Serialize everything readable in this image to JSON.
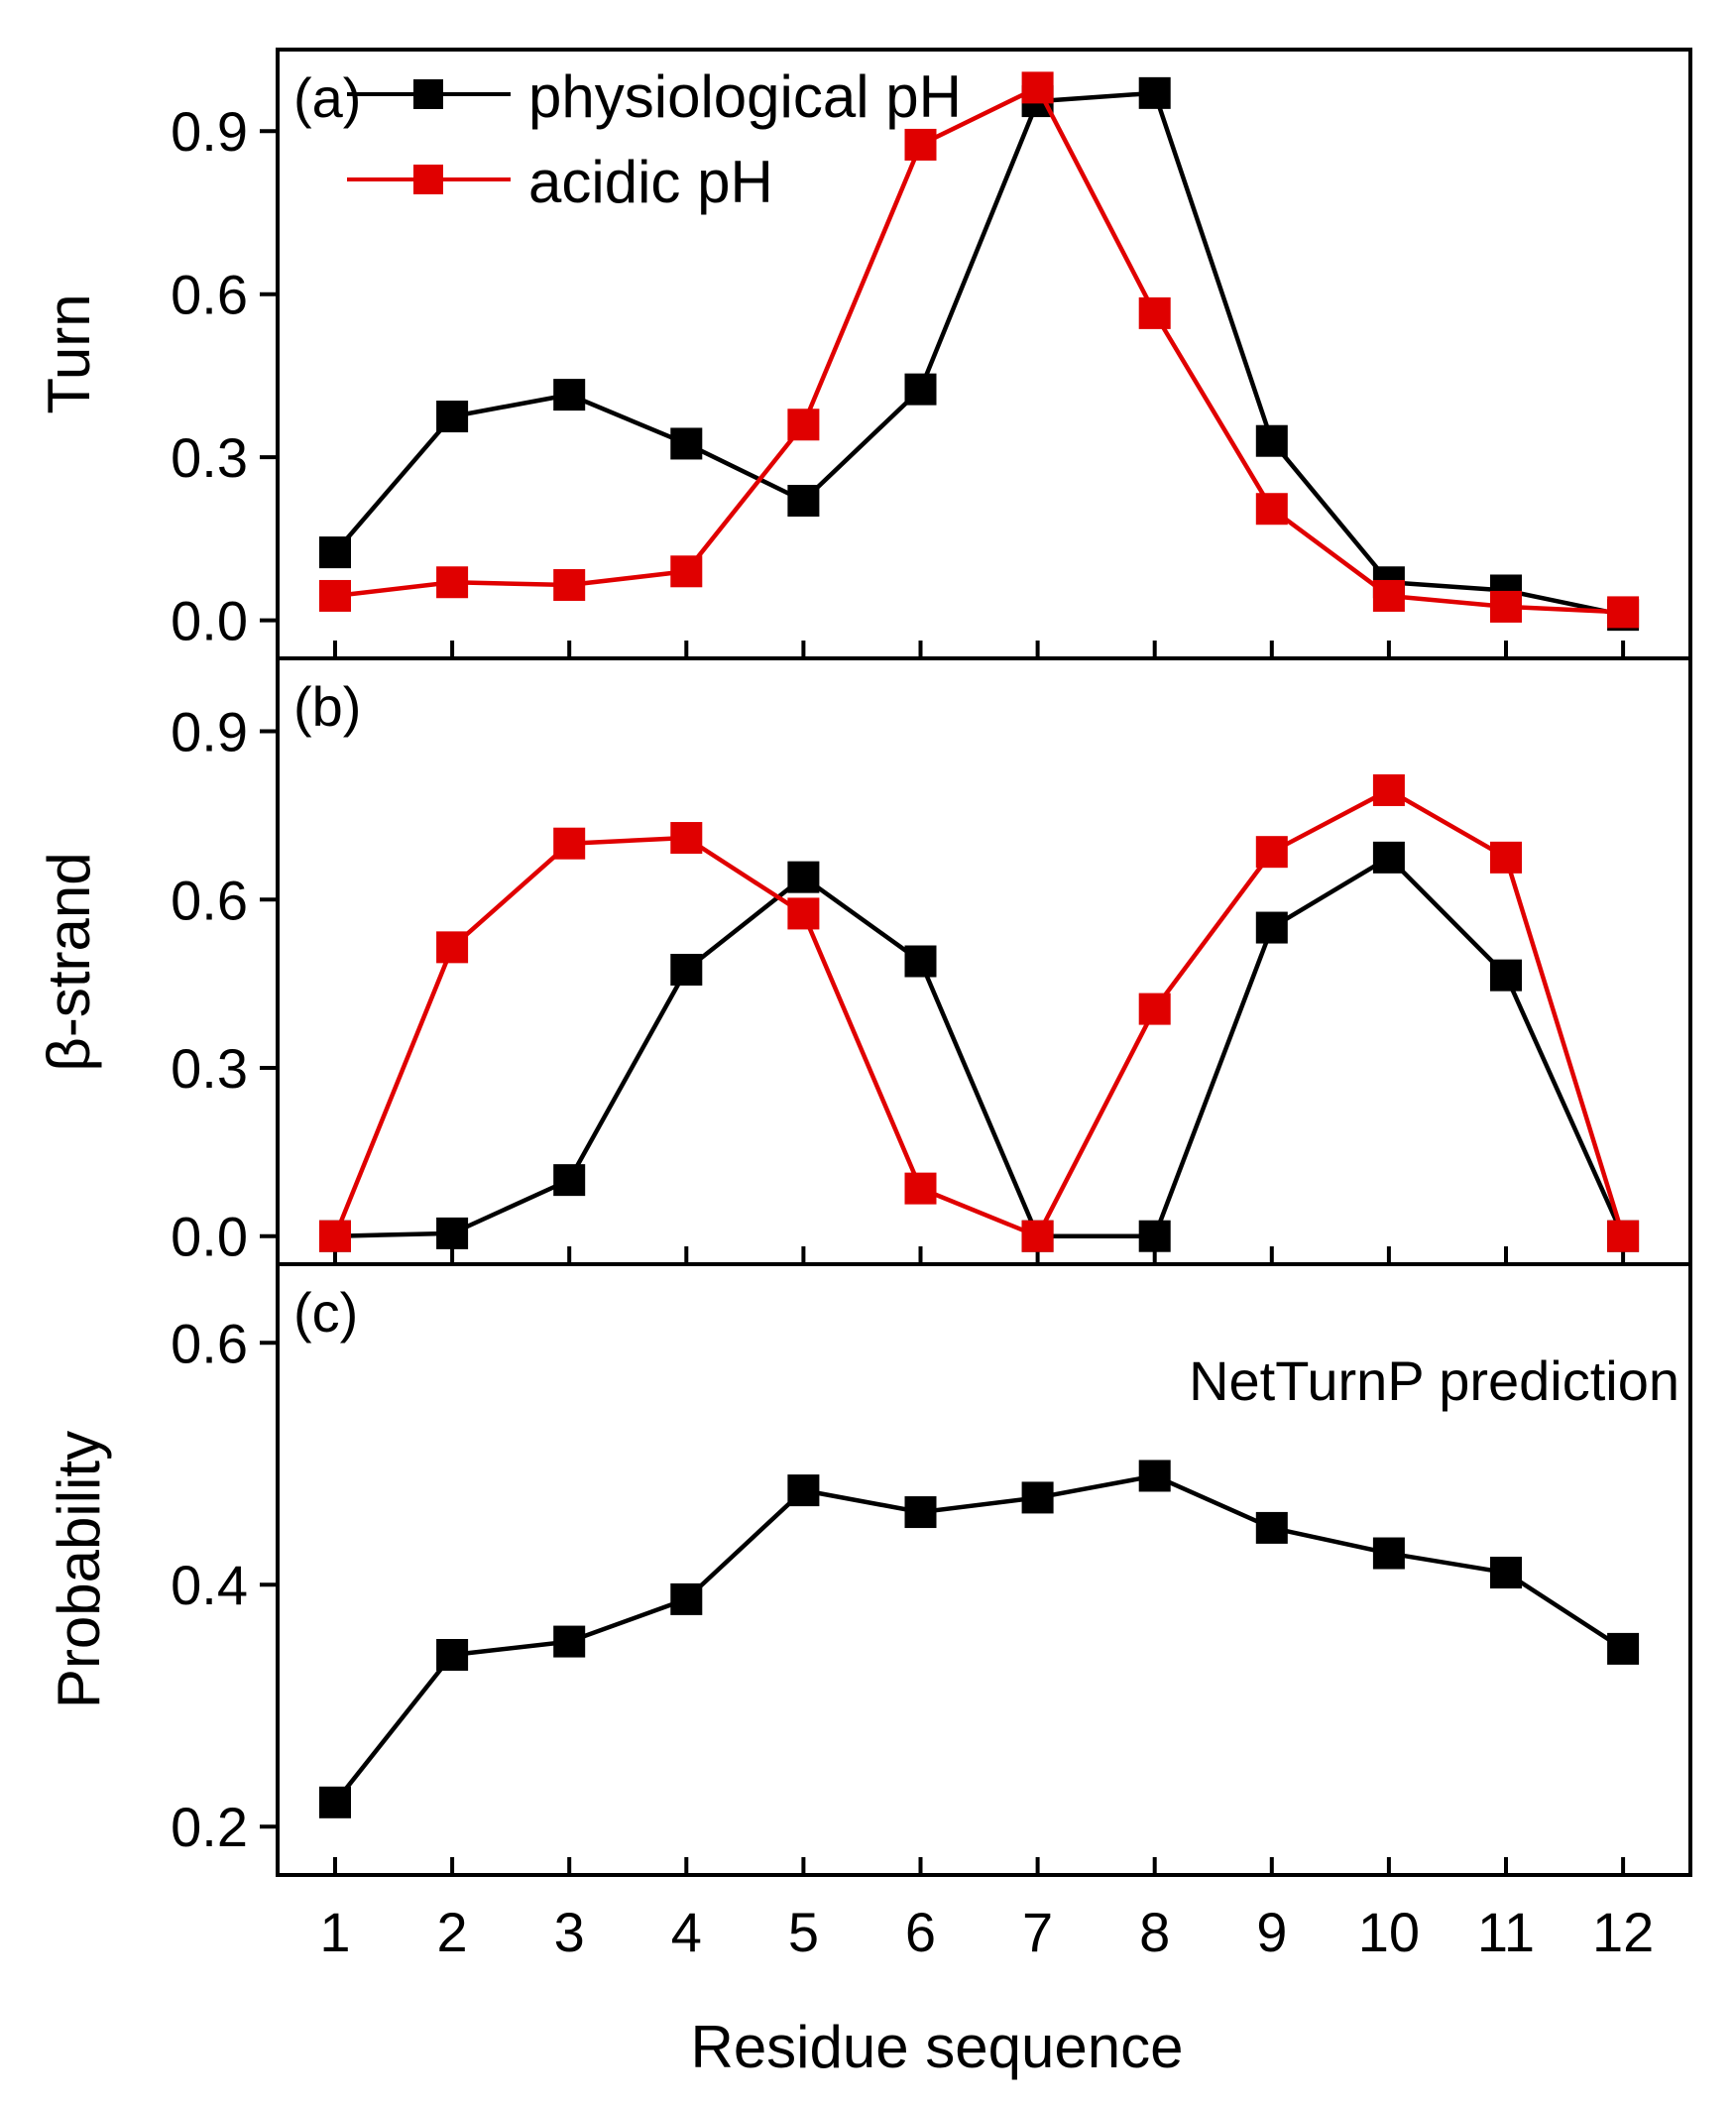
{
  "chart_data": [
    {
      "panel": "a",
      "panel_label": "(a)",
      "type": "line",
      "x": [
        1,
        2,
        3,
        4,
        5,
        6,
        7,
        8,
        9,
        10,
        11,
        12
      ],
      "ylabel": "Turn",
      "ylim": [
        -0.07,
        1.05
      ],
      "yticks": [
        0.0,
        0.3,
        0.6,
        0.9
      ],
      "ytick_labels": [
        "0.0",
        "0.3",
        "0.6",
        "0.9"
      ],
      "legend_position": "top-left",
      "series": [
        {
          "name": "physiological pH",
          "color": "#000000",
          "values": [
            0.125,
            0.375,
            0.415,
            0.325,
            0.22,
            0.425,
            0.955,
            0.97,
            0.33,
            0.07,
            0.055,
            0.01
          ]
        },
        {
          "name": "acidic pH",
          "color": "#e00000",
          "values": [
            0.045,
            0.07,
            0.065,
            0.09,
            0.36,
            0.875,
            0.98,
            0.565,
            0.205,
            0.045,
            0.025,
            0.015
          ]
        }
      ]
    },
    {
      "panel": "b",
      "panel_label": "(b)",
      "type": "line",
      "x": [
        1,
        2,
        3,
        4,
        5,
        6,
        7,
        8,
        9,
        10,
        11,
        12
      ],
      "ylabel": "β-strand",
      "ylim": [
        -0.05,
        1.03
      ],
      "yticks": [
        0.0,
        0.3,
        0.6,
        0.9
      ],
      "ytick_labels": [
        "0.0",
        "0.3",
        "0.6",
        "0.9"
      ],
      "series": [
        {
          "name": "physiological pH",
          "color": "#000000",
          "values": [
            0.0,
            0.005,
            0.1,
            0.475,
            0.64,
            0.49,
            0.0,
            0.0,
            0.55,
            0.675,
            0.465,
            0.0
          ]
        },
        {
          "name": "acidic pH",
          "color": "#e00000",
          "values": [
            0.0,
            0.515,
            0.7,
            0.71,
            0.575,
            0.085,
            0.0,
            0.405,
            0.685,
            0.795,
            0.675,
            0.0
          ]
        }
      ]
    },
    {
      "panel": "c",
      "panel_label": "(c)",
      "type": "line",
      "x": [
        1,
        2,
        3,
        4,
        5,
        6,
        7,
        8,
        9,
        10,
        11,
        12
      ],
      "xlabel": "Residue sequence",
      "xtick_labels": [
        "1",
        "2",
        "3",
        "4",
        "5",
        "6",
        "7",
        "8",
        "9",
        "10",
        "11",
        "12"
      ],
      "ylabel": "Probability",
      "ylim": [
        0.16,
        0.665
      ],
      "yticks": [
        0.2,
        0.4,
        0.6
      ],
      "ytick_labels": [
        "0.2",
        "0.4",
        "0.6"
      ],
      "annotation": "NetTurnP prediction",
      "series": [
        {
          "name": "NetTurnP prediction",
          "color": "#000000",
          "values": [
            0.22,
            0.342,
            0.353,
            0.388,
            0.478,
            0.46,
            0.472,
            0.49,
            0.447,
            0.426,
            0.41,
            0.347
          ]
        }
      ]
    }
  ]
}
